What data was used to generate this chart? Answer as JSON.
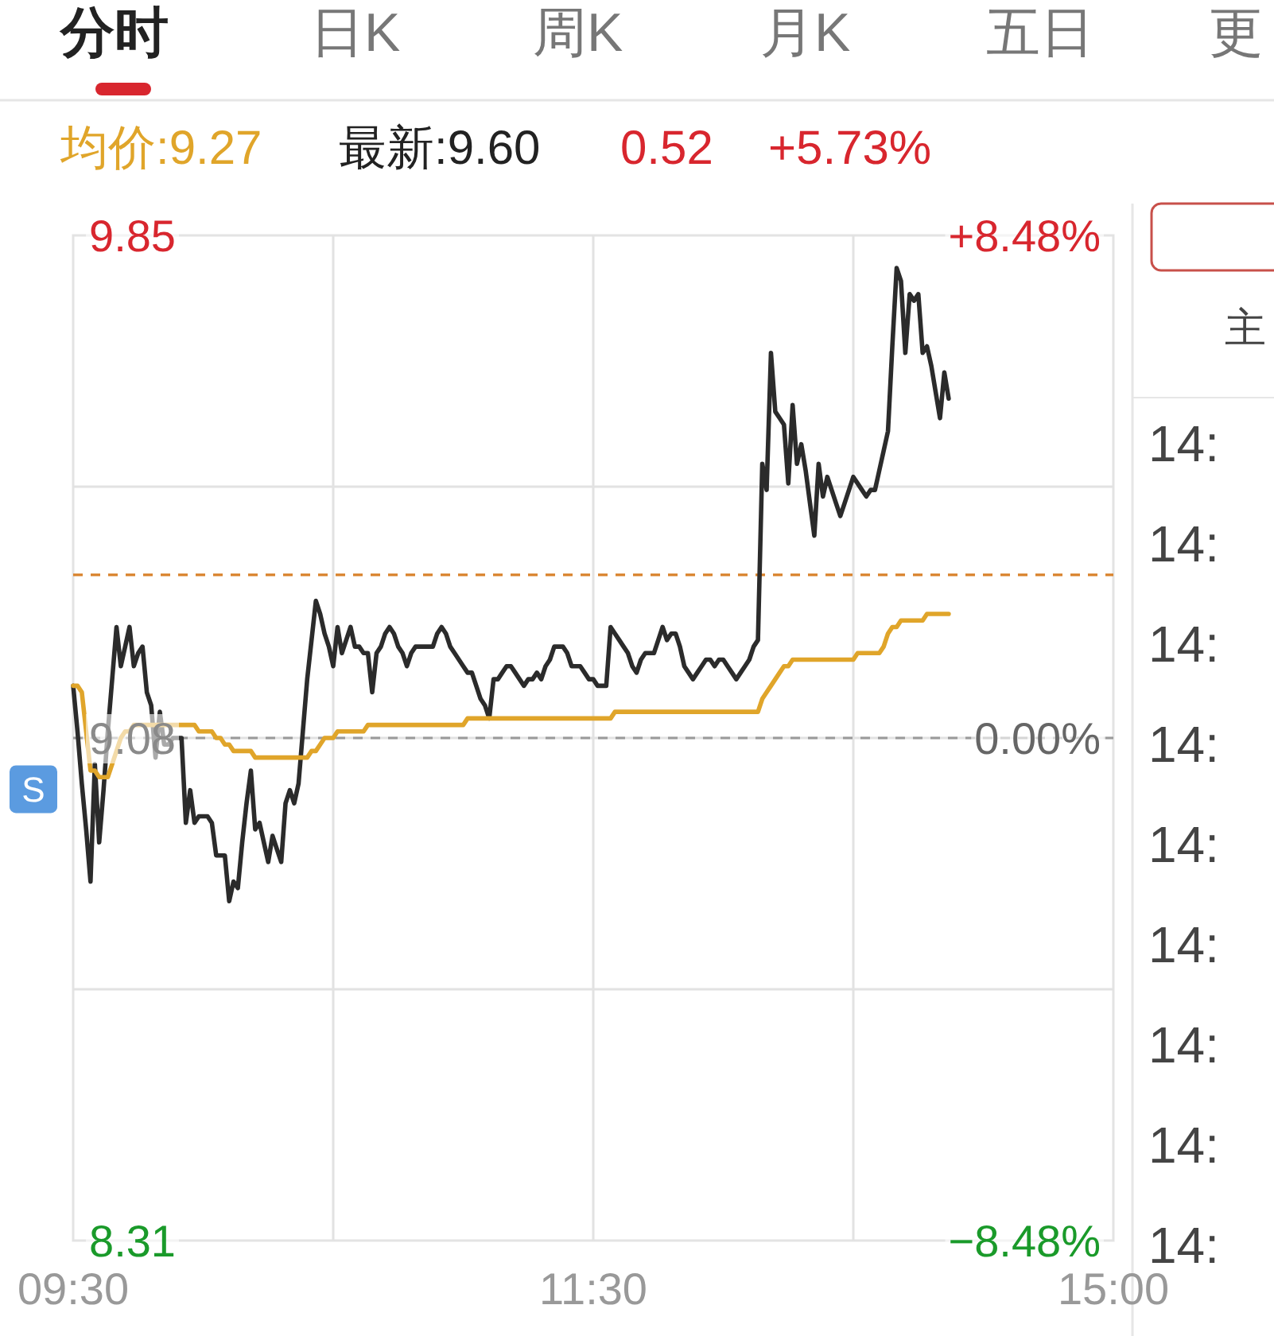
{
  "chart_data": {
    "type": "line",
    "annotations": [
      "分时",
      "日K",
      "周K",
      "月K",
      "五日",
      "更",
      "均价:9.27",
      "最新:9.60",
      "0.52",
      "+5.73%",
      "S",
      "主",
      "14:",
      "14:",
      "14:",
      "14:",
      "14:",
      "14:",
      "14:",
      "14:",
      "14:"
    ],
    "categories": [
      "09:30",
      null,
      null,
      null,
      null,
      null,
      null,
      null,
      null,
      null,
      null,
      null,
      null,
      null,
      null,
      null,
      null,
      null,
      null,
      null,
      null,
      null,
      null,
      null,
      null,
      null,
      null,
      null,
      null,
      null,
      null,
      null,
      null,
      null,
      null,
      null,
      null,
      null,
      null,
      null,
      null,
      null,
      null,
      null,
      null,
      null,
      null,
      null,
      null,
      null,
      null,
      null,
      null,
      null,
      null,
      null,
      null,
      null,
      null,
      null,
      null,
      null,
      null,
      null,
      null,
      null,
      null,
      null,
      null,
      null,
      null,
      null,
      null,
      null,
      null,
      null,
      null,
      null,
      null,
      null,
      null,
      null,
      null,
      null,
      null,
      null,
      null,
      null,
      null,
      null,
      null,
      null,
      null,
      null,
      null,
      null,
      null,
      null,
      null,
      null,
      null,
      null,
      null,
      null,
      null,
      null,
      null,
      null,
      null,
      null,
      null,
      null,
      null,
      null,
      null,
      null,
      null,
      null,
      null,
      null,
      "11:30",
      null,
      null,
      null,
      null,
      null,
      null,
      null,
      null,
      null,
      null,
      null,
      null,
      null,
      null,
      null,
      null,
      null,
      null,
      null,
      null,
      null,
      null,
      null,
      null,
      null,
      null,
      null,
      null,
      null,
      null,
      null,
      null,
      null,
      null,
      null,
      null,
      null,
      null,
      null,
      null,
      null,
      null,
      null,
      null,
      null,
      null,
      null,
      null,
      null,
      null,
      null,
      null,
      null,
      null,
      null,
      null,
      null,
      null,
      null,
      null,
      null,
      null,
      null,
      null,
      null,
      null,
      null,
      null,
      null,
      null,
      null,
      null,
      null,
      null,
      null,
      null,
      null,
      null,
      null,
      null,
      null,
      null,
      null,
      null,
      null,
      null,
      null,
      null,
      null,
      null,
      null,
      null,
      null,
      null,
      null,
      null,
      null,
      null,
      null,
      null,
      null,
      null,
      null,
      null,
      null,
      null,
      null,
      null,
      null,
      null,
      null,
      null,
      null,
      null,
      null,
      null,
      null,
      null,
      null,
      "15:00"
    ],
    "series": [
      {
        "color": "#2b2b2b",
        "values": [
          9.16,
          9.09,
          9.01,
          8.94,
          8.86,
          9.04,
          8.92,
          9.0,
          9.09,
          9.17,
          9.25,
          9.19,
          9.22,
          9.25,
          9.19,
          9.21,
          9.22,
          9.15,
          9.13,
          9.05,
          9.12,
          9.07,
          9.07,
          9.08,
          9.08,
          9.08,
          8.95,
          9.0,
          8.95,
          8.96,
          8.96,
          8.96,
          8.95,
          8.9,
          8.9,
          8.9,
          8.83,
          8.86,
          8.85,
          8.92,
          8.98,
          9.03,
          8.94,
          8.95,
          8.92,
          8.89,
          8.93,
          8.91,
          8.89,
          8.98,
          9.0,
          8.98,
          9.01,
          9.09,
          9.17,
          9.23,
          9.29,
          9.27,
          9.24,
          9.22,
          9.19,
          9.25,
          9.21,
          9.23,
          9.25,
          9.22,
          9.22,
          9.21,
          9.21,
          9.15,
          9.21,
          9.22,
          9.24,
          9.25,
          9.24,
          9.22,
          9.21,
          9.19,
          9.21,
          9.22,
          9.22,
          9.22,
          9.22,
          9.22,
          9.24,
          9.25,
          9.24,
          9.22,
          9.21,
          9.2,
          9.19,
          9.18,
          9.18,
          9.16,
          9.14,
          9.13,
          9.11,
          9.17,
          9.17,
          9.18,
          9.19,
          9.19,
          9.18,
          9.17,
          9.16,
          9.17,
          9.17,
          9.18,
          9.17,
          9.19,
          9.2,
          9.22,
          9.22,
          9.22,
          9.21,
          9.19,
          9.19,
          9.19,
          9.18,
          9.17,
          9.17,
          9.16,
          9.16,
          9.16,
          9.25,
          9.24,
          9.23,
          9.22,
          9.21,
          9.19,
          9.18,
          9.2,
          9.21,
          9.21,
          9.21,
          9.23,
          9.25,
          9.23,
          9.24,
          9.24,
          9.22,
          9.19,
          9.18,
          9.17,
          9.18,
          9.19,
          9.2,
          9.2,
          9.19,
          9.2,
          9.2,
          9.19,
          9.18,
          9.17,
          9.18,
          9.19,
          9.2,
          9.22,
          9.23,
          9.5,
          9.46,
          9.67,
          9.58,
          9.57,
          9.56,
          9.47,
          9.59,
          9.5,
          9.53,
          9.49,
          9.44,
          9.39,
          9.5,
          9.45,
          9.48,
          9.46,
          9.44,
          9.42,
          9.44,
          9.46,
          9.48,
          9.47,
          9.46,
          9.45,
          9.46,
          9.46,
          9.49,
          9.52,
          9.55,
          9.68,
          9.8,
          9.78,
          9.67,
          9.76,
          9.75,
          9.76,
          9.67,
          9.68,
          9.65,
          9.61,
          9.57,
          9.64,
          9.6,
          null,
          null,
          null,
          null,
          null,
          null,
          null,
          null,
          null,
          null,
          null,
          null,
          null,
          null,
          null,
          null,
          null,
          null,
          null,
          null,
          null,
          null,
          null,
          null,
          null,
          null,
          null,
          null,
          null,
          null,
          null,
          null,
          null,
          null,
          null,
          null,
          null,
          null
        ]
      },
      {
        "color": "#e0a52a",
        "values": [
          9.16,
          9.16,
          9.15,
          9.09,
          9.03,
          9.03,
          9.02,
          9.02,
          9.02,
          9.04,
          9.06,
          9.08,
          9.09,
          9.09,
          9.1,
          9.1,
          9.1,
          9.1,
          9.1,
          9.1,
          9.1,
          9.1,
          9.1,
          9.1,
          9.1,
          9.1,
          9.1,
          9.1,
          9.1,
          9.09,
          9.09,
          9.09,
          9.09,
          9.08,
          9.08,
          9.07,
          9.07,
          9.06,
          9.06,
          9.06,
          9.06,
          9.06,
          9.05,
          9.05,
          9.05,
          9.05,
          9.05,
          9.05,
          9.05,
          9.05,
          9.05,
          9.05,
          9.05,
          9.05,
          9.05,
          9.06,
          9.06,
          9.07,
          9.08,
          9.08,
          9.08,
          9.09,
          9.09,
          9.09,
          9.09,
          9.09,
          9.09,
          9.09,
          9.1,
          9.1,
          9.1,
          9.1,
          9.1,
          9.1,
          9.1,
          9.1,
          9.1,
          9.1,
          9.1,
          9.1,
          9.1,
          9.1,
          9.1,
          9.1,
          9.1,
          9.1,
          9.1,
          9.1,
          9.1,
          9.1,
          9.1,
          9.11,
          9.11,
          9.11,
          9.11,
          9.11,
          9.11,
          9.11,
          9.11,
          9.11,
          9.11,
          9.11,
          9.11,
          9.11,
          9.11,
          9.11,
          9.11,
          9.11,
          9.11,
          9.11,
          9.11,
          9.11,
          9.11,
          9.11,
          9.11,
          9.11,
          9.11,
          9.11,
          9.11,
          9.11,
          9.11,
          9.11,
          9.11,
          9.11,
          9.11,
          9.12,
          9.12,
          9.12,
          9.12,
          9.12,
          9.12,
          9.12,
          9.12,
          9.12,
          9.12,
          9.12,
          9.12,
          9.12,
          9.12,
          9.12,
          9.12,
          9.12,
          9.12,
          9.12,
          9.12,
          9.12,
          9.12,
          9.12,
          9.12,
          9.12,
          9.12,
          9.12,
          9.12,
          9.12,
          9.12,
          9.12,
          9.12,
          9.12,
          9.12,
          9.14,
          9.15,
          9.16,
          9.17,
          9.18,
          9.19,
          9.19,
          9.2,
          9.2,
          9.2,
          9.2,
          9.2,
          9.2,
          9.2,
          9.2,
          9.2,
          9.2,
          9.2,
          9.2,
          9.2,
          9.2,
          9.2,
          9.21,
          9.21,
          9.21,
          9.21,
          9.21,
          9.21,
          9.22,
          9.24,
          9.25,
          9.25,
          9.26,
          9.26,
          9.26,
          9.26,
          9.26,
          9.26,
          9.27,
          9.27,
          9.27,
          9.27,
          9.27,
          9.27,
          null,
          null,
          null,
          null,
          null,
          null,
          null,
          null,
          null,
          null,
          null,
          null,
          null,
          null,
          null,
          null,
          null,
          null,
          null,
          null,
          null,
          null,
          null,
          null,
          null,
          null,
          null,
          null,
          null,
          null,
          null,
          null,
          null,
          null,
          null,
          null,
          null,
          null
        ]
      }
    ],
    "ylim": [
      8.31,
      9.85
    ],
    "yticks": [
      9.85,
      9.08,
      8.31
    ],
    "y2lim": [
      -8.48,
      8.48
    ],
    "y2ticks": [
      {
        "value": 8.48,
        "label": "+8.48%"
      },
      {
        "value": 0,
        "label": "0.00%"
      },
      {
        "value": -8.48,
        "label": "−8.48%"
      }
    ],
    "ref_lines": [
      {
        "axis": "y",
        "value": 9.33,
        "color": "#d9822b",
        "line_style": "dashed"
      },
      {
        "axis": "y",
        "value": 9.08,
        "color": "#9a9a9a",
        "line_style": "dashed"
      }
    ],
    "grid": true,
    "marker": "none",
    "line_style": "solid"
  }
}
